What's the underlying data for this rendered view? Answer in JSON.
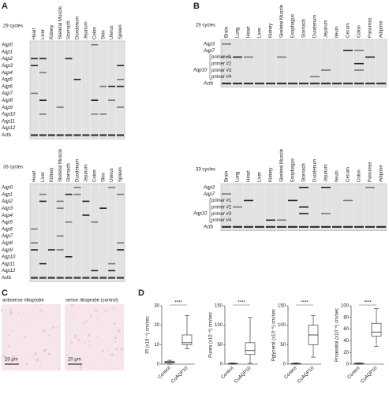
{
  "panel_labels": [
    "A",
    "B",
    "C",
    "D"
  ],
  "gel_a": {
    "lanes": [
      "Heart",
      "Liver",
      "Kidney",
      "Skeletal Muscle",
      "Stomach",
      "Duodenum",
      "Jejunum",
      "Colon",
      "Skin",
      "Uterus",
      "Spleen"
    ],
    "rows": [
      "Aqp0",
      "Aqp1",
      "Aqp2",
      "Aqp3",
      "Aqp4",
      "Aqp5",
      "Aqp6",
      "Aqp7",
      "Aqp8",
      "Aqp9",
      "Aqp10",
      "Aqp11",
      "Aqp12",
      "Actb"
    ],
    "blocks": [
      "29 cycles",
      "33 cycles"
    ]
  },
  "gel_b": {
    "lanes": [
      "Brain",
      "Lung",
      "Heart",
      "Liver",
      "Kidney",
      "Skeletal Muscle",
      "Esophagus",
      "Stomach",
      "Duodenum",
      "Jejunum",
      "Ileum",
      "Cecum",
      "Colon",
      "Pancreas",
      "Adipose"
    ],
    "rows": [
      "Aqp3",
      "Aqp7",
      "primer #1",
      "primer #2",
      "primer #3",
      "primer #4",
      "Actb"
    ],
    "group_label": "Aqp10",
    "blocks": [
      "29 cycles",
      "33 cycles"
    ]
  },
  "ish": {
    "images": [
      {
        "caption": "antisense riboprobe",
        "scale": "20 μm"
      },
      {
        "caption": "sense riboprobe (control)",
        "scale": "20 μm"
      }
    ]
  },
  "chart_data": [
    {
      "type": "box",
      "y_label": "Pf (x10⁻⁴) cm/sec",
      "categories": [
        "Control",
        "CuAQP10"
      ],
      "significance": "****",
      "color": "#222",
      "boxes": [
        {
          "min": 0,
          "q1": 0.5,
          "median": 1,
          "q3": 1.5,
          "max": 2
        },
        {
          "min": 8,
          "q1": 10,
          "median": 11,
          "q3": 15,
          "max": 25
        }
      ],
      "ylim": [
        0,
        30
      ],
      "yticks": [
        0,
        10,
        20,
        30
      ]
    },
    {
      "type": "box",
      "y_label": "Purea (x10⁻⁶) cm/sec",
      "categories": [
        "Control",
        "CuAQP10"
      ],
      "significance": "****",
      "color": "#222",
      "boxes": [
        {
          "min": 0,
          "q1": 0,
          "median": 1,
          "q3": 2,
          "max": 3
        },
        {
          "min": 2,
          "q1": 25,
          "median": 35,
          "q3": 55,
          "max": 120
        }
      ],
      "ylim": [
        0,
        150
      ],
      "yticks": [
        0,
        50,
        100,
        150
      ]
    },
    {
      "type": "box",
      "y_label": "Pglycerol (x10⁻⁶) cm/sec",
      "categories": [
        "Control",
        "CuAQP10"
      ],
      "significance": "****",
      "color": "#222",
      "boxes": [
        {
          "min": 0,
          "q1": 0,
          "median": 1,
          "q3": 2,
          "max": 3
        },
        {
          "min": 18,
          "q1": 50,
          "median": 75,
          "q3": 100,
          "max": 125
        }
      ],
      "ylim": [
        0,
        150
      ],
      "yticks": [
        0,
        50,
        100,
        150
      ]
    },
    {
      "type": "box",
      "y_label": "Pmannitol (x10⁻⁶) cm/sec",
      "categories": [
        "Control",
        "CuAQP10"
      ],
      "significance": "****",
      "color": "#222",
      "boxes": [
        {
          "min": 0,
          "q1": 0,
          "median": 1,
          "q3": 1.5,
          "max": 2
        },
        {
          "min": 30,
          "q1": 48,
          "median": 55,
          "q3": 70,
          "max": 95
        }
      ],
      "ylim": [
        0,
        100
      ],
      "yticks": [
        0,
        20,
        40,
        60,
        80,
        100
      ]
    }
  ]
}
